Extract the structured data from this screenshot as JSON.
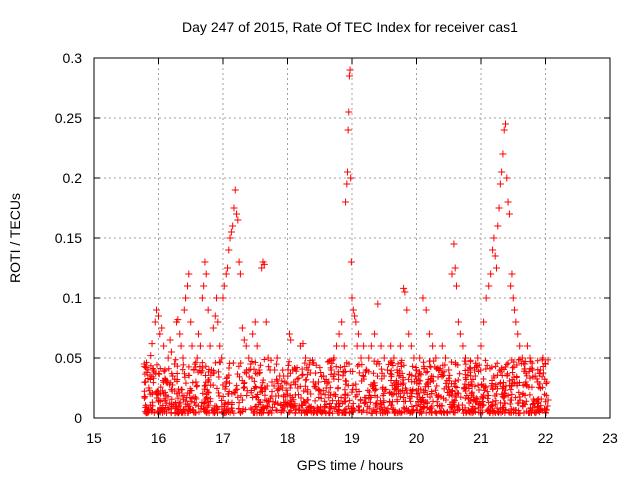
{
  "chart_data": {
    "type": "scatter",
    "title": "Day 247 of 2015, Rate Of TEC Index for receiver cas1",
    "xlabel": "GPS time / hours",
    "ylabel": "ROTI / TECUs",
    "xlim": [
      15,
      23
    ],
    "ylim": [
      0,
      0.3
    ],
    "x_ticks": [
      15,
      16,
      17,
      18,
      19,
      20,
      21,
      22,
      23
    ],
    "y_ticks": [
      0,
      0.05,
      0.1,
      0.15,
      0.2,
      0.25,
      0.3
    ],
    "x_tick_labels": [
      "15",
      "16",
      "17",
      "18",
      "19",
      "20",
      "21",
      "22",
      "23"
    ],
    "y_tick_labels": [
      "0",
      "0.05",
      "0.1",
      "0.15",
      "0.2",
      "0.25",
      "0.3"
    ],
    "grid": true,
    "marker": "+",
    "color": "#ff0000",
    "series": [
      {
        "points": [
          [
            15.78,
            0.045
          ],
          [
            15.8,
            0.03
          ],
          [
            15.82,
            0.038
          ],
          [
            15.85,
            0.025
          ],
          [
            15.88,
            0.052
          ],
          [
            15.9,
            0.062
          ],
          [
            15.92,
            0.04
          ],
          [
            15.95,
            0.08
          ],
          [
            15.97,
            0.09
          ],
          [
            16.0,
            0.085
          ],
          [
            16.02,
            0.07
          ],
          [
            16.05,
            0.075
          ],
          [
            16.08,
            0.06
          ],
          [
            16.1,
            0.04
          ],
          [
            16.12,
            0.03
          ],
          [
            16.15,
            0.05
          ],
          [
            16.18,
            0.065
          ],
          [
            16.2,
            0.055
          ],
          [
            16.22,
            0.035
          ],
          [
            16.25,
            0.045
          ],
          [
            16.28,
            0.08
          ],
          [
            16.3,
            0.082
          ],
          [
            16.33,
            0.07
          ],
          [
            16.35,
            0.06
          ],
          [
            16.38,
            0.05
          ],
          [
            16.4,
            0.09
          ],
          [
            16.42,
            0.1
          ],
          [
            16.45,
            0.11
          ],
          [
            16.47,
            0.12
          ],
          [
            16.5,
            0.08
          ],
          [
            16.52,
            0.06
          ],
          [
            16.55,
            0.04
          ],
          [
            16.58,
            0.03
          ],
          [
            16.6,
            0.05
          ],
          [
            16.62,
            0.07
          ],
          [
            16.65,
            0.06
          ],
          [
            16.68,
            0.1
          ],
          [
            16.7,
            0.11
          ],
          [
            16.72,
            0.13
          ],
          [
            16.74,
            0.12
          ],
          [
            16.77,
            0.09
          ],
          [
            16.8,
            0.06
          ],
          [
            16.82,
            0.04
          ],
          [
            16.85,
            0.075
          ],
          [
            16.88,
            0.085
          ],
          [
            16.9,
            0.1
          ],
          [
            16.92,
            0.08
          ],
          [
            16.95,
            0.06
          ],
          [
            16.98,
            0.05
          ],
          [
            17.0,
            0.1
          ],
          [
            17.02,
            0.11
          ],
          [
            17.05,
            0.12
          ],
          [
            17.07,
            0.125
          ],
          [
            17.09,
            0.14
          ],
          [
            17.11,
            0.15
          ],
          [
            17.13,
            0.155
          ],
          [
            17.15,
            0.16
          ],
          [
            17.17,
            0.175
          ],
          [
            17.19,
            0.19
          ],
          [
            17.21,
            0.17
          ],
          [
            17.23,
            0.165
          ],
          [
            17.25,
            0.13
          ],
          [
            17.27,
            0.12
          ],
          [
            17.3,
            0.075
          ],
          [
            17.33,
            0.065
          ],
          [
            17.36,
            0.06
          ],
          [
            17.4,
            0.05
          ],
          [
            17.43,
            0.045
          ],
          [
            17.46,
            0.07
          ],
          [
            17.5,
            0.08
          ],
          [
            17.53,
            0.06
          ],
          [
            17.56,
            0.04
          ],
          [
            17.6,
            0.125
          ],
          [
            17.62,
            0.13
          ],
          [
            17.64,
            0.128
          ],
          [
            17.67,
            0.08
          ],
          [
            17.7,
            0.05
          ],
          [
            17.73,
            0.04
          ],
          [
            17.76,
            0.03
          ],
          [
            17.8,
            0.04
          ],
          [
            17.84,
            0.05
          ],
          [
            17.88,
            0.035
          ],
          [
            17.92,
            0.025
          ],
          [
            17.96,
            0.03
          ],
          [
            18.0,
            0.02
          ],
          [
            18.03,
            0.07
          ],
          [
            18.05,
            0.065
          ],
          [
            18.08,
            0.04
          ],
          [
            18.12,
            0.03
          ],
          [
            18.16,
            0.025
          ],
          [
            18.2,
            0.06
          ],
          [
            18.24,
            0.062
          ],
          [
            18.28,
            0.05
          ],
          [
            18.32,
            0.04
          ],
          [
            18.36,
            0.02
          ],
          [
            18.4,
            0.03
          ],
          [
            18.44,
            0.025
          ],
          [
            18.48,
            0.03
          ],
          [
            18.52,
            0.02
          ],
          [
            18.56,
            0.035
          ],
          [
            18.6,
            0.025
          ],
          [
            18.64,
            0.03
          ],
          [
            18.68,
            0.04
          ],
          [
            18.72,
            0.05
          ],
          [
            18.76,
            0.06
          ],
          [
            18.8,
            0.07
          ],
          [
            18.84,
            0.08
          ],
          [
            18.88,
            0.06
          ],
          [
            18.9,
            0.18
          ],
          [
            18.92,
            0.195
          ],
          [
            18.93,
            0.205
          ],
          [
            18.94,
            0.24
          ],
          [
            18.95,
            0.255
          ],
          [
            18.96,
            0.285
          ],
          [
            18.97,
            0.29
          ],
          [
            18.98,
            0.2
          ],
          [
            18.99,
            0.13
          ],
          [
            19.0,
            0.1
          ],
          [
            19.02,
            0.09
          ],
          [
            19.04,
            0.085
          ],
          [
            19.06,
            0.08
          ],
          [
            19.08,
            0.06
          ],
          [
            19.1,
            0.07
          ],
          [
            19.14,
            0.05
          ],
          [
            19.18,
            0.06
          ],
          [
            19.22,
            0.04
          ],
          [
            19.26,
            0.05
          ],
          [
            19.3,
            0.06
          ],
          [
            19.35,
            0.07
          ],
          [
            19.4,
            0.095
          ],
          [
            19.45,
            0.06
          ],
          [
            19.5,
            0.05
          ],
          [
            19.55,
            0.04
          ],
          [
            19.6,
            0.06
          ],
          [
            19.65,
            0.05
          ],
          [
            19.7,
            0.04
          ],
          [
            19.75,
            0.06
          ],
          [
            19.8,
            0.108
          ],
          [
            19.82,
            0.105
          ],
          [
            19.85,
            0.09
          ],
          [
            19.88,
            0.07
          ],
          [
            19.92,
            0.06
          ],
          [
            19.96,
            0.05
          ],
          [
            20.0,
            0.04
          ],
          [
            20.05,
            0.05
          ],
          [
            20.1,
            0.1
          ],
          [
            20.15,
            0.09
          ],
          [
            20.2,
            0.07
          ],
          [
            20.25,
            0.06
          ],
          [
            20.3,
            0.05
          ],
          [
            20.35,
            0.04
          ],
          [
            20.4,
            0.06
          ],
          [
            20.45,
            0.05
          ],
          [
            20.5,
            0.04
          ],
          [
            20.55,
            0.12
          ],
          [
            20.58,
            0.145
          ],
          [
            20.6,
            0.125
          ],
          [
            20.62,
            0.11
          ],
          [
            20.65,
            0.08
          ],
          [
            20.68,
            0.07
          ],
          [
            20.72,
            0.06
          ],
          [
            20.76,
            0.05
          ],
          [
            20.8,
            0.04
          ],
          [
            20.85,
            0.03
          ],
          [
            20.9,
            0.04
          ],
          [
            20.95,
            0.05
          ],
          [
            21.0,
            0.06
          ],
          [
            21.04,
            0.08
          ],
          [
            21.08,
            0.1
          ],
          [
            21.12,
            0.11
          ],
          [
            21.15,
            0.12
          ],
          [
            21.18,
            0.14
          ],
          [
            21.2,
            0.15
          ],
          [
            21.22,
            0.135
          ],
          [
            21.24,
            0.125
          ],
          [
            21.26,
            0.16
          ],
          [
            21.28,
            0.175
          ],
          [
            21.3,
            0.195
          ],
          [
            21.32,
            0.205
          ],
          [
            21.34,
            0.22
          ],
          [
            21.36,
            0.24
          ],
          [
            21.38,
            0.245
          ],
          [
            21.4,
            0.2
          ],
          [
            21.42,
            0.18
          ],
          [
            21.44,
            0.17
          ],
          [
            21.46,
            0.11
          ],
          [
            21.48,
            0.12
          ],
          [
            21.5,
            0.1
          ],
          [
            21.52,
            0.09
          ],
          [
            21.54,
            0.08
          ],
          [
            21.57,
            0.07
          ],
          [
            21.6,
            0.06
          ],
          [
            21.64,
            0.05
          ],
          [
            21.68,
            0.045
          ],
          [
            21.72,
            0.06
          ],
          [
            21.76,
            0.05
          ],
          [
            21.8,
            0.04
          ],
          [
            21.84,
            0.035
          ],
          [
            21.88,
            0.03
          ],
          [
            21.92,
            0.04
          ],
          [
            21.96,
            0.05
          ],
          [
            22.0,
            0.045
          ],
          [
            22.02,
            0.03
          ],
          [
            22.04,
            0.015
          ]
        ]
      }
    ]
  }
}
